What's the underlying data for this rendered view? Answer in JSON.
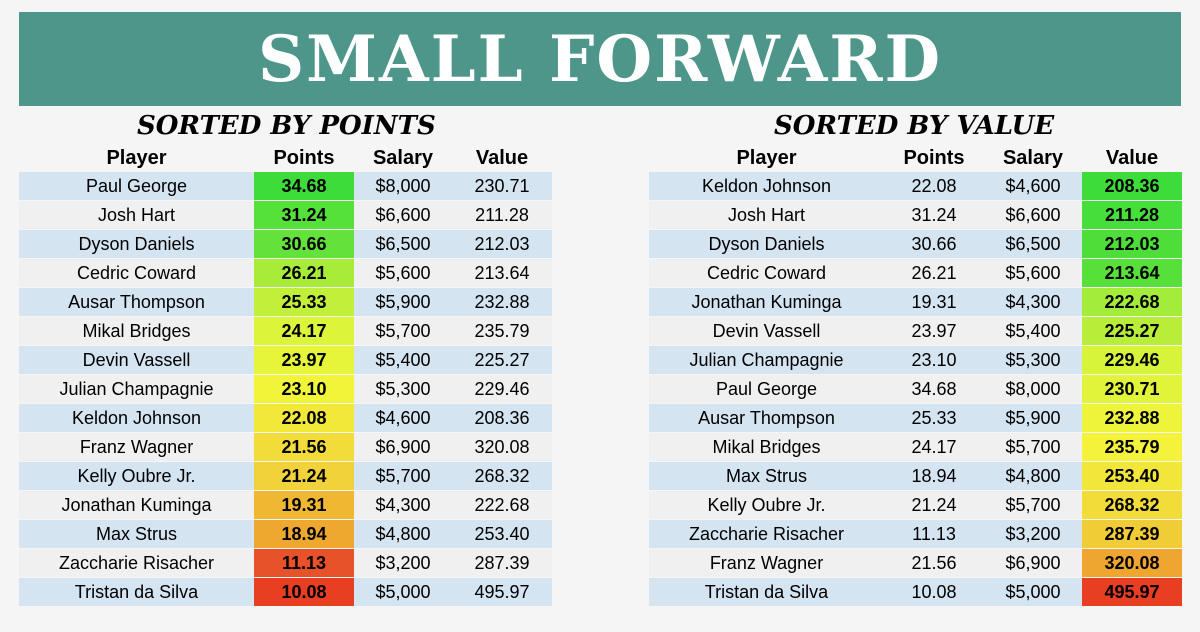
{
  "title": "SMALL FORWARD",
  "headers": {
    "player": "Player",
    "points": "Points",
    "salary": "Salary",
    "value": "Value"
  },
  "by_points": {
    "title": "SORTED BY POINTS",
    "rows": [
      {
        "player": "Paul George",
        "points": "34.68",
        "salary": "$8,000",
        "value": "230.71",
        "color": "#3ddc3a"
      },
      {
        "player": "Josh Hart",
        "points": "31.24",
        "salary": "$6,600",
        "value": "211.28",
        "color": "#55e03a"
      },
      {
        "player": "Dyson Daniels",
        "points": "30.66",
        "salary": "$6,500",
        "value": "212.03",
        "color": "#62e23a"
      },
      {
        "player": "Cedric Coward",
        "points": "26.21",
        "salary": "$5,600",
        "value": "213.64",
        "color": "#a8ec3a"
      },
      {
        "player": "Ausar Thompson",
        "points": "25.33",
        "salary": "$5,900",
        "value": "232.88",
        "color": "#c2f03a"
      },
      {
        "player": "Mikal Bridges",
        "points": "24.17",
        "salary": "$5,700",
        "value": "235.79",
        "color": "#dcf43a"
      },
      {
        "player": "Devin Vassell",
        "points": "23.97",
        "salary": "$5,400",
        "value": "225.27",
        "color": "#e6f43a"
      },
      {
        "player": "Julian Champagnie",
        "points": "23.10",
        "salary": "$5,300",
        "value": "229.46",
        "color": "#f2f43a"
      },
      {
        "player": "Keldon Johnson",
        "points": "22.08",
        "salary": "$4,600",
        "value": "208.36",
        "color": "#f2e83a"
      },
      {
        "player": "Franz Wagner",
        "points": "21.56",
        "salary": "$6,900",
        "value": "320.08",
        "color": "#f2dc3a"
      },
      {
        "player": "Kelly Oubre Jr.",
        "points": "21.24",
        "salary": "$5,700",
        "value": "268.32",
        "color": "#f2d23a"
      },
      {
        "player": "Jonathan Kuminga",
        "points": "19.31",
        "salary": "$4,300",
        "value": "222.68",
        "color": "#f0b832"
      },
      {
        "player": "Max Strus",
        "points": "18.94",
        "salary": "$4,800",
        "value": "253.40",
        "color": "#eea830"
      },
      {
        "player": "Zaccharie Risacher",
        "points": "11.13",
        "salary": "$3,200",
        "value": "287.39",
        "color": "#e8522a"
      },
      {
        "player": "Tristan da Silva",
        "points": "10.08",
        "salary": "$5,000",
        "value": "495.97",
        "color": "#e83e22"
      }
    ]
  },
  "by_value": {
    "title": "SORTED BY VALUE",
    "rows": [
      {
        "player": "Keldon Johnson",
        "points": "22.08",
        "salary": "$4,600",
        "value": "208.36",
        "color": "#3ddc3a"
      },
      {
        "player": "Josh Hart",
        "points": "31.24",
        "salary": "$6,600",
        "value": "211.28",
        "color": "#45de3a"
      },
      {
        "player": "Dyson Daniels",
        "points": "30.66",
        "salary": "$6,500",
        "value": "212.03",
        "color": "#4ede3a"
      },
      {
        "player": "Cedric Coward",
        "points": "26.21",
        "salary": "$5,600",
        "value": "213.64",
        "color": "#58e03a"
      },
      {
        "player": "Jonathan Kuminga",
        "points": "19.31",
        "salary": "$4,300",
        "value": "222.68",
        "color": "#a4ec3a"
      },
      {
        "player": "Devin Vassell",
        "points": "23.97",
        "salary": "$5,400",
        "value": "225.27",
        "color": "#b8ee3a"
      },
      {
        "player": "Julian Champagnie",
        "points": "23.10",
        "salary": "$5,300",
        "value": "229.46",
        "color": "#d8f43a"
      },
      {
        "player": "Paul George",
        "points": "34.68",
        "salary": "$8,000",
        "value": "230.71",
        "color": "#e2f43a"
      },
      {
        "player": "Ausar Thompson",
        "points": "25.33",
        "salary": "$5,900",
        "value": "232.88",
        "color": "#eef43a"
      },
      {
        "player": "Mikal Bridges",
        "points": "24.17",
        "salary": "$5,700",
        "value": "235.79",
        "color": "#f4f23a"
      },
      {
        "player": "Max Strus",
        "points": "18.94",
        "salary": "$4,800",
        "value": "253.40",
        "color": "#f2e63a"
      },
      {
        "player": "Kelly Oubre Jr.",
        "points": "21.24",
        "salary": "$5,700",
        "value": "268.32",
        "color": "#f2dc3a"
      },
      {
        "player": "Zaccharie Risacher",
        "points": "11.13",
        "salary": "$3,200",
        "value": "287.39",
        "color": "#f0cc36"
      },
      {
        "player": "Franz Wagner",
        "points": "21.56",
        "salary": "$6,900",
        "value": "320.08",
        "color": "#eea630"
      },
      {
        "player": "Tristan da Silva",
        "points": "10.08",
        "salary": "$5,000",
        "value": "495.97",
        "color": "#e83e22"
      }
    ]
  }
}
